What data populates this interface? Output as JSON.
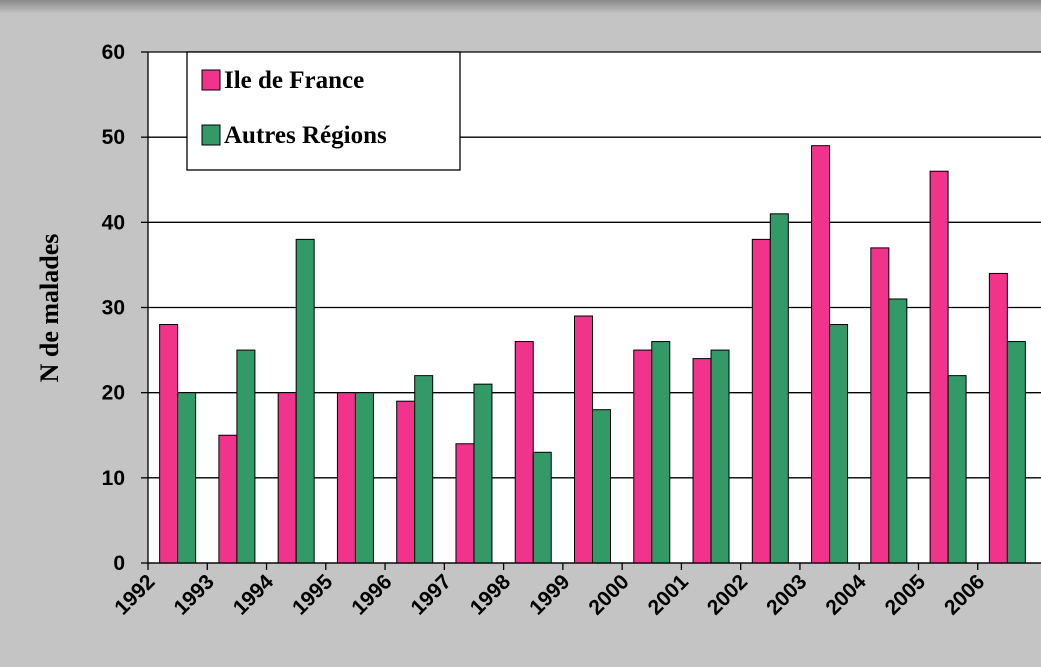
{
  "chart_data": {
    "type": "bar",
    "y_label": "N de malades",
    "categories": [
      "1992",
      "1993",
      "1994",
      "1995",
      "1996",
      "1997",
      "1998",
      "1999",
      "2000",
      "2001",
      "2002",
      "2003",
      "2004",
      "2005",
      "2006"
    ],
    "series": [
      {
        "name": "Ile de France",
        "color": "#f2338c",
        "values": [
          28,
          15,
          20,
          20,
          19,
          14,
          26,
          29,
          25,
          24,
          38,
          49,
          37,
          46,
          34
        ]
      },
      {
        "name": "Autres Régions",
        "color": "#339966",
        "values": [
          20,
          25,
          38,
          20,
          22,
          21,
          13,
          18,
          26,
          25,
          41,
          28,
          31,
          22,
          26
        ]
      }
    ],
    "ylim": [
      0,
      60
    ],
    "yticks": [
      0,
      10,
      20,
      30,
      40,
      50,
      60
    ],
    "grid": true,
    "legend": "top-left"
  }
}
